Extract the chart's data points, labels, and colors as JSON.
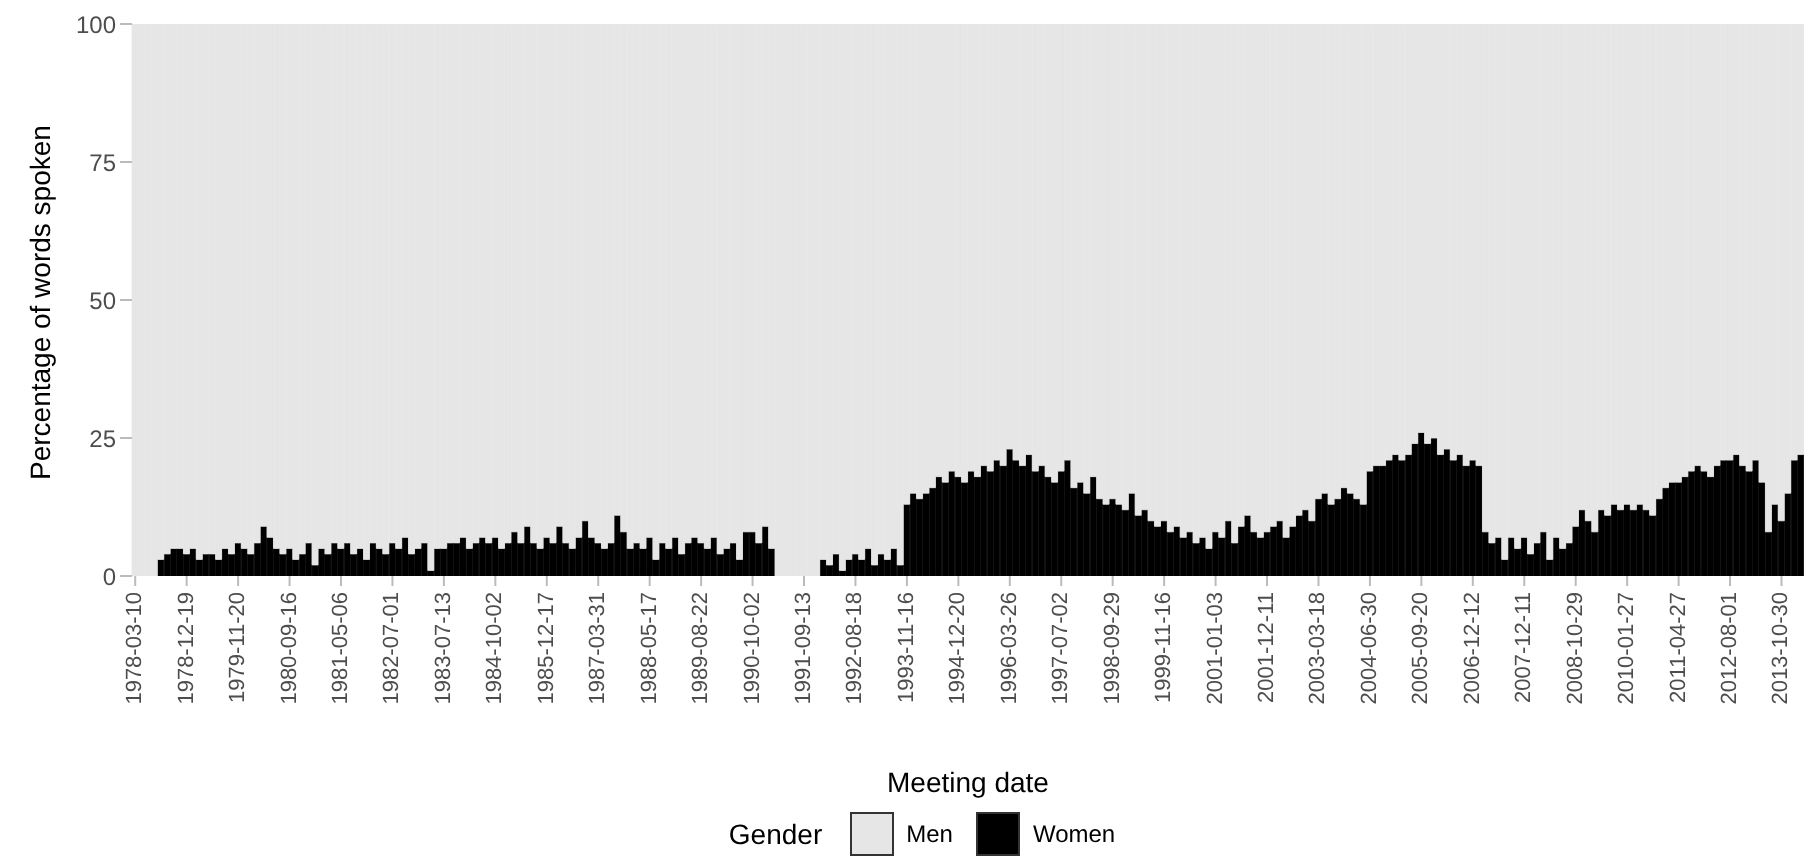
{
  "chart_data": {
    "type": "bar",
    "stacked": true,
    "xlabel": "Meeting date",
    "ylabel": "Percentage of words spoken",
    "legend_title": "Gender",
    "legend": "bottom",
    "grid": false,
    "ylim": [
      0,
      100
    ],
    "yticks": [
      0,
      25,
      50,
      75,
      100
    ],
    "categories": [
      "1978-03-10",
      null,
      null,
      null,
      null,
      null,
      null,
      null,
      "1978-12-19",
      null,
      null,
      null,
      null,
      null,
      null,
      null,
      "1979-11-20",
      null,
      null,
      null,
      null,
      null,
      null,
      null,
      "1980-09-16",
      null,
      null,
      null,
      null,
      null,
      null,
      null,
      "1981-05-06",
      null,
      null,
      null,
      null,
      null,
      null,
      null,
      "1982-07-01",
      null,
      null,
      null,
      null,
      null,
      null,
      null,
      "1983-07-13",
      null,
      null,
      null,
      null,
      null,
      null,
      null,
      "1984-10-02",
      null,
      null,
      null,
      null,
      null,
      null,
      null,
      "1985-12-17",
      null,
      null,
      null,
      null,
      null,
      null,
      null,
      "1987-03-31",
      null,
      null,
      null,
      null,
      null,
      null,
      null,
      "1988-05-17",
      null,
      null,
      null,
      null,
      null,
      null,
      null,
      "1989-08-22",
      null,
      null,
      null,
      null,
      null,
      null,
      null,
      "1990-10-02",
      null,
      null,
      null,
      null,
      null,
      null,
      null,
      "1991-09-13",
      null,
      null,
      null,
      null,
      null,
      null,
      null,
      "1992-08-18",
      null,
      null,
      null,
      null,
      null,
      null,
      null,
      "1993-11-16",
      null,
      null,
      null,
      null,
      null,
      null,
      null,
      "1994-12-20",
      null,
      null,
      null,
      null,
      null,
      null,
      null,
      "1996-03-26",
      null,
      null,
      null,
      null,
      null,
      null,
      null,
      "1997-07-02",
      null,
      null,
      null,
      null,
      null,
      null,
      null,
      "1998-09-29",
      null,
      null,
      null,
      null,
      null,
      null,
      null,
      "1999-11-16",
      null,
      null,
      null,
      null,
      null,
      null,
      null,
      "2001-01-03",
      null,
      null,
      null,
      null,
      null,
      null,
      null,
      "2001-12-11",
      null,
      null,
      null,
      null,
      null,
      null,
      null,
      "2003-03-18",
      null,
      null,
      null,
      null,
      null,
      null,
      null,
      "2004-06-30",
      null,
      null,
      null,
      null,
      null,
      null,
      null,
      "2005-09-20",
      null,
      null,
      null,
      null,
      null,
      null,
      null,
      "2006-12-12",
      null,
      null,
      null,
      null,
      null,
      null,
      null,
      "2007-12-11",
      null,
      null,
      null,
      null,
      null,
      null,
      null,
      "2008-10-29",
      null,
      null,
      null,
      null,
      null,
      null,
      null,
      "2010-01-27",
      null,
      null,
      null,
      null,
      null,
      null,
      null,
      "2011-04-27",
      null,
      null,
      null,
      null,
      null,
      null,
      null,
      "2012-08-01",
      null,
      null,
      null,
      null,
      null,
      null,
      null,
      "2013-10-30",
      null,
      null,
      null
    ],
    "series": [
      {
        "name": "Women",
        "color": "#000000",
        "values": [
          0,
          0,
          0,
          0,
          3,
          4,
          5,
          5,
          4,
          5,
          3,
          4,
          4,
          3,
          5,
          4,
          6,
          5,
          4,
          6,
          9,
          7,
          5,
          4,
          5,
          3,
          4,
          6,
          2,
          5,
          4,
          6,
          5,
          6,
          4,
          5,
          3,
          6,
          5,
          4,
          6,
          5,
          7,
          4,
          5,
          6,
          1,
          5,
          5,
          6,
          6,
          7,
          5,
          6,
          7,
          6,
          7,
          5,
          6,
          8,
          6,
          9,
          6,
          5,
          7,
          6,
          9,
          6,
          5,
          7,
          10,
          7,
          6,
          5,
          6,
          11,
          8,
          5,
          6,
          5,
          7,
          3,
          6,
          5,
          7,
          4,
          6,
          7,
          6,
          5,
          7,
          4,
          5,
          6,
          3,
          8,
          8,
          6,
          9,
          5,
          0,
          0,
          0,
          0,
          0,
          0,
          0,
          3,
          2,
          4,
          1,
          3,
          4,
          3,
          5,
          2,
          4,
          3,
          5,
          2,
          13,
          15,
          14,
          15,
          16,
          18,
          17,
          19,
          18,
          17,
          19,
          18,
          20,
          19,
          21,
          20,
          23,
          21,
          20,
          22,
          19,
          20,
          18,
          17,
          19,
          21,
          16,
          17,
          15,
          18,
          14,
          13,
          14,
          13,
          12,
          15,
          11,
          12,
          10,
          9,
          10,
          8,
          9,
          7,
          8,
          6,
          7,
          5,
          8,
          7,
          10,
          6,
          9,
          11,
          8,
          7,
          8,
          9,
          10,
          7,
          9,
          11,
          12,
          10,
          14,
          15,
          13,
          14,
          16,
          15,
          14,
          13,
          19,
          20,
          20,
          21,
          22,
          21,
          22,
          24,
          26,
          24,
          25,
          22,
          23,
          21,
          22,
          20,
          21,
          20,
          8,
          6,
          7,
          3,
          7,
          5,
          7,
          4,
          6,
          8,
          3,
          7,
          5,
          6,
          9,
          12,
          10,
          8,
          12,
          11,
          13,
          12,
          13,
          12,
          13,
          12,
          11,
          14,
          16,
          17,
          17,
          18,
          19,
          20,
          19,
          18,
          20,
          21,
          21,
          22,
          20,
          19,
          21,
          17,
          8,
          13,
          10,
          15,
          21,
          22
        ]
      },
      {
        "name": "Men",
        "color": "#e6e6e6",
        "values": [
          100,
          100,
          100,
          100,
          97,
          96,
          95,
          95,
          96,
          95,
          97,
          96,
          96,
          97,
          95,
          96,
          94,
          95,
          96,
          94,
          91,
          93,
          95,
          96,
          95,
          97,
          96,
          94,
          98,
          95,
          96,
          94,
          95,
          94,
          96,
          95,
          97,
          94,
          95,
          96,
          94,
          95,
          93,
          96,
          95,
          94,
          99,
          95,
          95,
          94,
          94,
          93,
          95,
          94,
          93,
          94,
          93,
          95,
          94,
          92,
          94,
          91,
          94,
          95,
          93,
          94,
          91,
          94,
          95,
          93,
          90,
          93,
          94,
          95,
          94,
          89,
          92,
          95,
          94,
          95,
          93,
          97,
          94,
          95,
          93,
          96,
          94,
          93,
          94,
          95,
          93,
          96,
          95,
          94,
          97,
          92,
          92,
          94,
          91,
          95,
          100,
          100,
          100,
          100,
          100,
          100,
          100,
          97,
          98,
          96,
          99,
          97,
          96,
          97,
          95,
          98,
          96,
          97,
          95,
          98,
          87,
          85,
          86,
          85,
          84,
          82,
          83,
          81,
          82,
          83,
          81,
          82,
          80,
          81,
          79,
          80,
          77,
          79,
          80,
          78,
          81,
          80,
          82,
          83,
          81,
          79,
          84,
          83,
          85,
          82,
          86,
          87,
          86,
          87,
          88,
          85,
          89,
          88,
          90,
          91,
          90,
          92,
          91,
          93,
          92,
          94,
          93,
          95,
          92,
          93,
          90,
          94,
          91,
          89,
          92,
          93,
          92,
          91,
          90,
          93,
          91,
          89,
          88,
          90,
          86,
          85,
          87,
          86,
          84,
          85,
          86,
          87,
          81,
          80,
          80,
          79,
          78,
          79,
          78,
          76,
          74,
          76,
          75,
          78,
          77,
          79,
          78,
          80,
          79,
          80,
          92,
          94,
          93,
          97,
          93,
          95,
          93,
          96,
          94,
          92,
          97,
          93,
          95,
          94,
          91,
          88,
          90,
          92,
          88,
          89,
          87,
          88,
          87,
          88,
          87,
          88,
          89,
          86,
          84,
          83,
          83,
          82,
          81,
          80,
          81,
          82,
          80,
          79,
          79,
          78,
          80,
          81,
          79,
          83,
          92,
          87,
          90,
          85,
          79,
          78
        ]
      }
    ]
  }
}
